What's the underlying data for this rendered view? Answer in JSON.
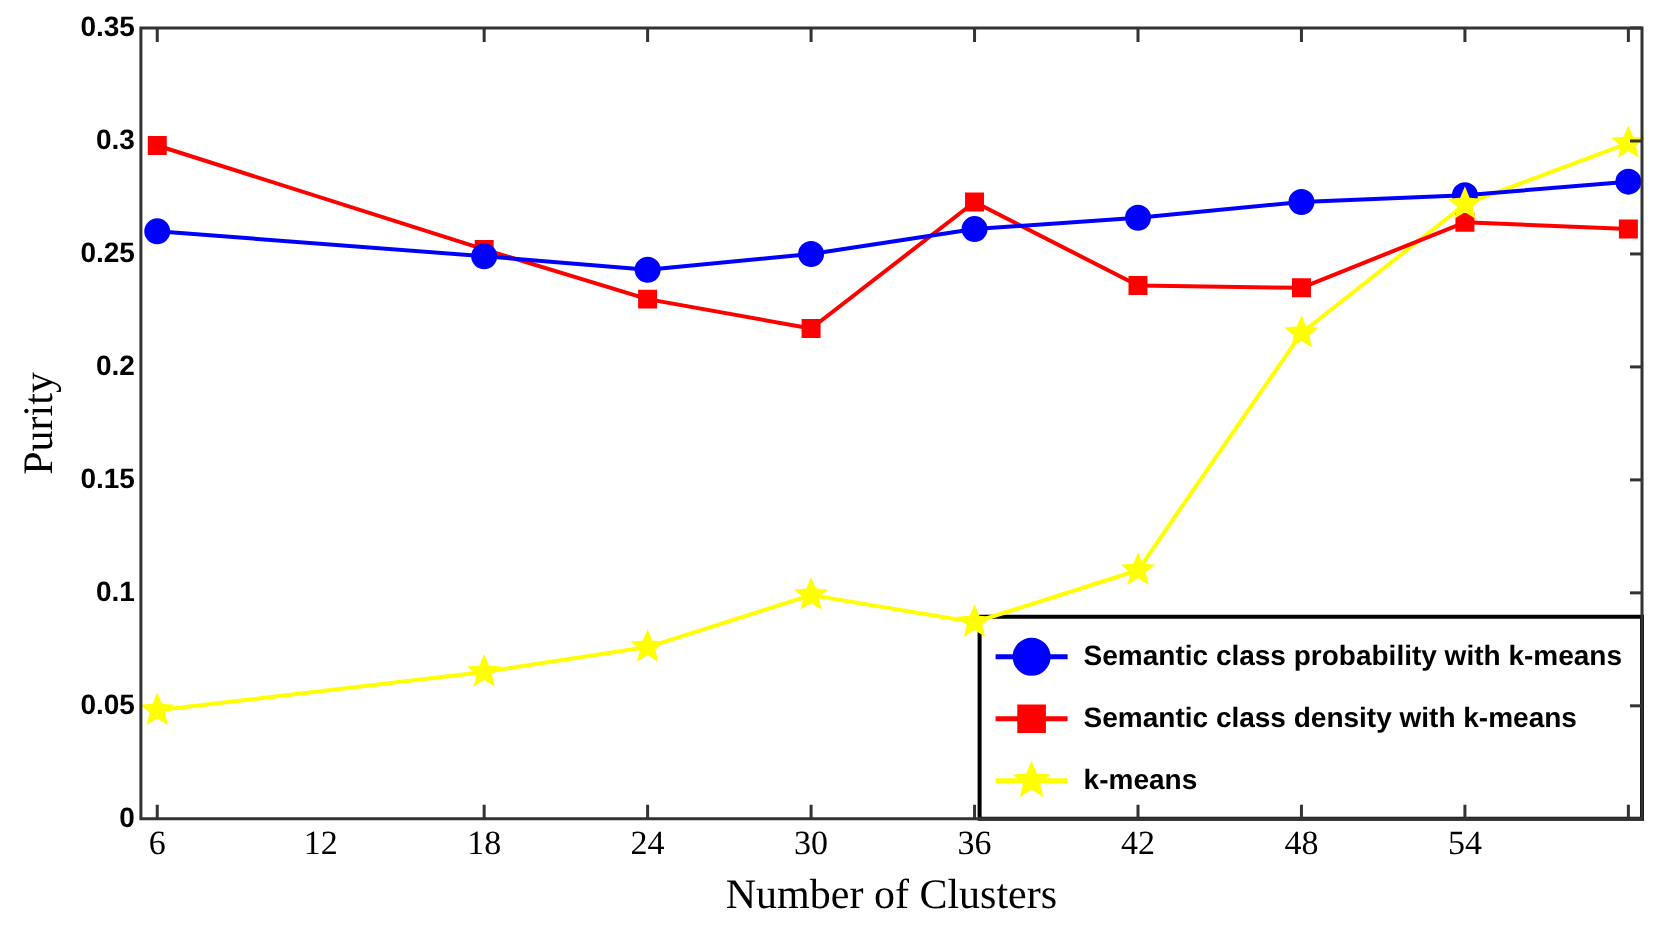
{
  "chart_data": {
    "type": "line",
    "xlabel": "Number of Clusters",
    "ylabel": "Purity",
    "x": [
      6,
      18,
      24,
      30,
      36,
      42,
      48,
      54,
      60
    ],
    "xlim": [
      5.4,
      60.5
    ],
    "xticks": [
      6,
      12,
      18,
      24,
      30,
      36,
      42,
      48,
      54,
      {
        "value": 60,
        "label": null
      }
    ],
    "ylim": [
      0,
      0.35
    ],
    "yticks": [
      0,
      0.05,
      0.1,
      0.15,
      0.2,
      0.25,
      0.3,
      0.35
    ],
    "grid": false,
    "legend": "bottom right",
    "line_style": "solid",
    "series": [
      {
        "name": "Semantic class probability with k-means",
        "color": "#0000ff",
        "marker": "circle",
        "values": [
          0.26,
          0.249,
          0.243,
          0.25,
          0.261,
          0.266,
          0.273,
          0.276,
          0.282
        ]
      },
      {
        "name": "Semantic class density with k-means",
        "color": "#ff0000",
        "marker": "square",
        "values": [
          0.298,
          0.252,
          0.23,
          0.217,
          0.273,
          0.236,
          0.235,
          0.264,
          0.261
        ]
      },
      {
        "name": "k-means",
        "color": "#ffff00",
        "marker": "star",
        "values": [
          0.048,
          0.065,
          0.076,
          0.099,
          0.087,
          0.11,
          0.215,
          0.272,
          0.299
        ]
      }
    ]
  }
}
